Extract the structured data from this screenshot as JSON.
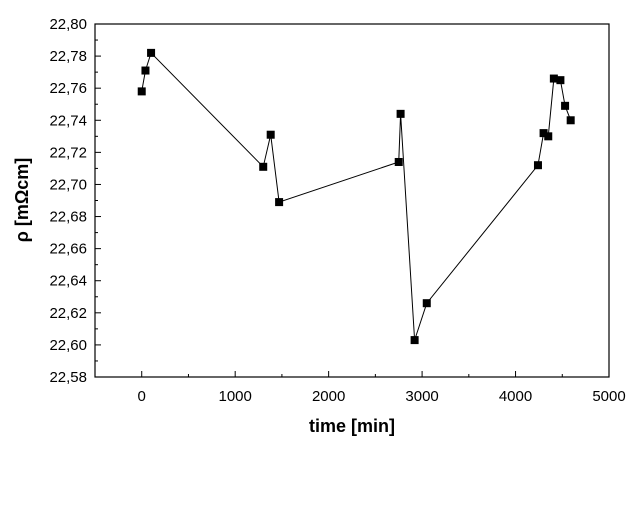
{
  "chart_data": {
    "type": "line",
    "title": "",
    "xlabel": "time [min]",
    "ylabel": "ρ [mΩcm]",
    "xlim": [
      -500,
      5000
    ],
    "ylim": [
      22.58,
      22.8
    ],
    "xticks": [
      0,
      1000,
      2000,
      3000,
      4000,
      5000
    ],
    "yticks": [
      22.58,
      22.6,
      22.62,
      22.64,
      22.66,
      22.68,
      22.7,
      22.72,
      22.74,
      22.76,
      22.78,
      22.8
    ],
    "ytick_labels": [
      "22,58",
      "22,60",
      "22,62",
      "22,64",
      "22,66",
      "22,68",
      "22,70",
      "22,72",
      "22,74",
      "22,76",
      "22,78",
      "22,80"
    ],
    "grid": false,
    "marker": "square",
    "series": [
      {
        "color": "#000000",
        "points": [
          [
            0,
            22.758
          ],
          [
            40,
            22.771
          ],
          [
            100,
            22.782
          ],
          [
            1300,
            22.711
          ],
          [
            1380,
            22.731
          ],
          [
            1470,
            22.689
          ],
          [
            2750,
            22.714
          ],
          [
            2770,
            22.744
          ],
          [
            2920,
            22.603
          ],
          [
            3050,
            22.626
          ],
          [
            4240,
            22.712
          ],
          [
            4300,
            22.732
          ],
          [
            4350,
            22.73
          ],
          [
            4410,
            22.766
          ],
          [
            4480,
            22.765
          ],
          [
            4530,
            22.749
          ],
          [
            4590,
            22.74
          ]
        ]
      }
    ]
  }
}
